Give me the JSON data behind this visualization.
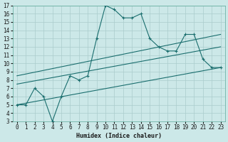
{
  "title": "",
  "xlabel": "Humidex (Indice chaleur)",
  "background_color": "#cce8e8",
  "grid_color": "#aacccc",
  "line_color": "#1a6e6e",
  "xlim": [
    -0.5,
    23.5
  ],
  "ylim": [
    3,
    17
  ],
  "xticks": [
    0,
    1,
    2,
    3,
    4,
    5,
    6,
    7,
    8,
    9,
    10,
    11,
    12,
    13,
    14,
    15,
    16,
    17,
    18,
    19,
    20,
    21,
    22,
    23
  ],
  "yticks": [
    3,
    4,
    5,
    6,
    7,
    8,
    9,
    10,
    11,
    12,
    13,
    14,
    15,
    16,
    17
  ],
  "line_main": {
    "x": [
      0,
      1,
      2,
      3,
      4,
      5,
      6,
      7,
      8,
      9,
      10,
      11,
      12,
      13,
      14,
      15,
      16,
      17,
      18,
      19,
      20,
      21,
      22,
      23
    ],
    "y": [
      5,
      5,
      7,
      6,
      3,
      6,
      8.5,
      8,
      8.5,
      13,
      17,
      16.5,
      15.5,
      15.5,
      16,
      13,
      12,
      11.5,
      11.5,
      13.5,
      13.5,
      10.5,
      9.5,
      9.5
    ]
  },
  "line_straight1": {
    "x": [
      0,
      23
    ],
    "y": [
      5,
      9.5
    ]
  },
  "line_straight2": {
    "x": [
      0,
      23
    ],
    "y": [
      7.5,
      12
    ]
  },
  "line_straight3": {
    "x": [
      0,
      23
    ],
    "y": [
      8.5,
      13.5
    ]
  }
}
